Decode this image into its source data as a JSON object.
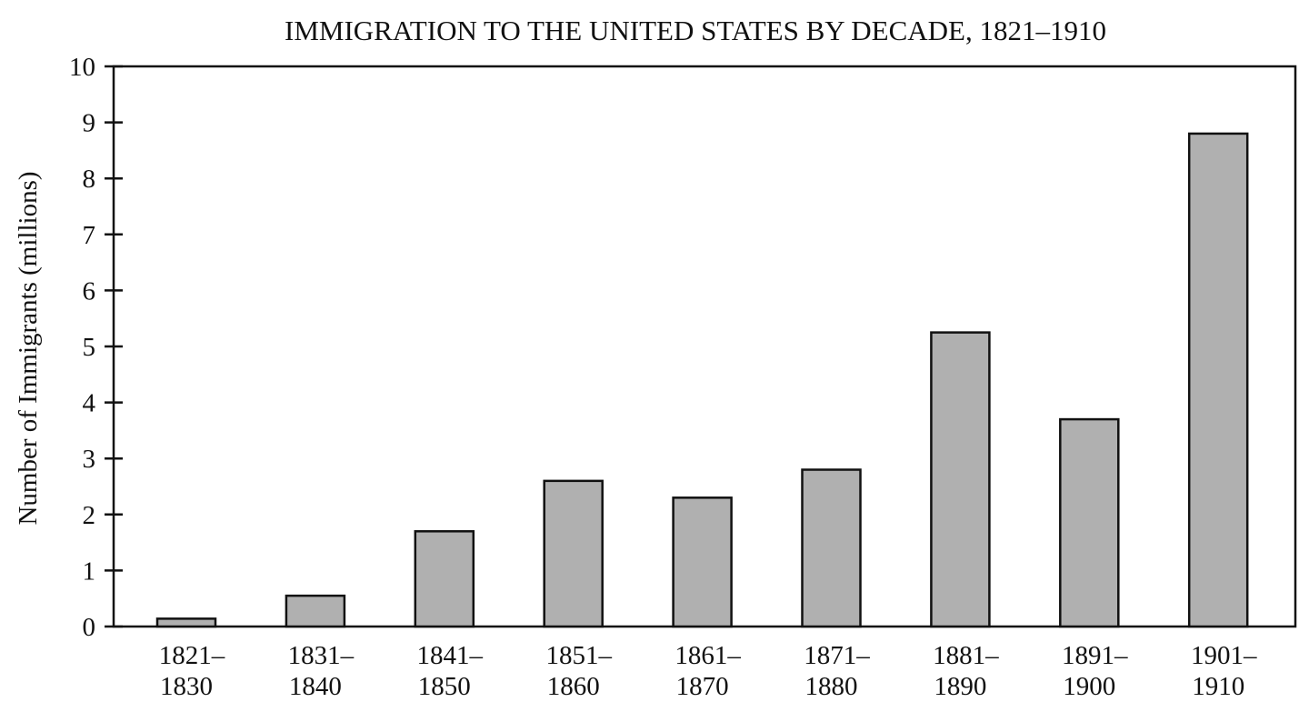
{
  "chart_data": {
    "type": "bar",
    "title": "IMMIGRATION TO THE UNITED STATES BY DECADE, 1821–1910",
    "xlabel": "",
    "ylabel": "Number of Immigrants (millions)",
    "ylim": [
      0,
      10
    ],
    "yticks": [
      "0",
      "1",
      "2",
      "3",
      "4",
      "5",
      "6",
      "7",
      "8",
      "9",
      "10"
    ],
    "grid": false,
    "categories": [
      [
        "1821–",
        "1830"
      ],
      [
        "1831–",
        "1840"
      ],
      [
        "1841–",
        "1850"
      ],
      [
        "1851–",
        "1860"
      ],
      [
        "1861–",
        "1870"
      ],
      [
        "1871–",
        "1880"
      ],
      [
        "1881–",
        "1890"
      ],
      [
        "1891–",
        "1900"
      ],
      [
        "1901–",
        "1910"
      ]
    ],
    "values": [
      0.14,
      0.55,
      1.7,
      2.6,
      2.3,
      2.8,
      5.25,
      3.7,
      8.8
    ],
    "bar_color": "#b0b0b0",
    "edge_color": "#111111"
  }
}
